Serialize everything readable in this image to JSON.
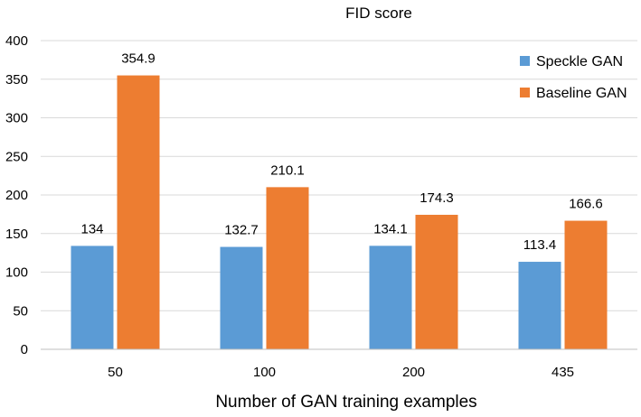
{
  "chart_data": {
    "type": "bar",
    "title": "FID score",
    "xlabel": "Number of GAN training examples",
    "ylabel": "",
    "categories": [
      "50",
      "100",
      "200",
      "435"
    ],
    "ylim": [
      0,
      400
    ],
    "yticks": [
      0,
      50,
      100,
      150,
      200,
      250,
      300,
      350,
      400
    ],
    "grid": true,
    "legend_position": "top-right",
    "series": [
      {
        "name": "Speckle GAN",
        "color": "#5b9bd5",
        "values": [
          134,
          132.7,
          134.1,
          113.4
        ],
        "labels": [
          "134",
          "132.7",
          "134.1",
          "113.4"
        ]
      },
      {
        "name": "Baseline GAN",
        "color": "#ed7d31",
        "values": [
          354.9,
          210.1,
          174.3,
          166.6
        ],
        "labels": [
          "354.9",
          "210.1",
          "174.3",
          "166.6"
        ]
      }
    ]
  }
}
